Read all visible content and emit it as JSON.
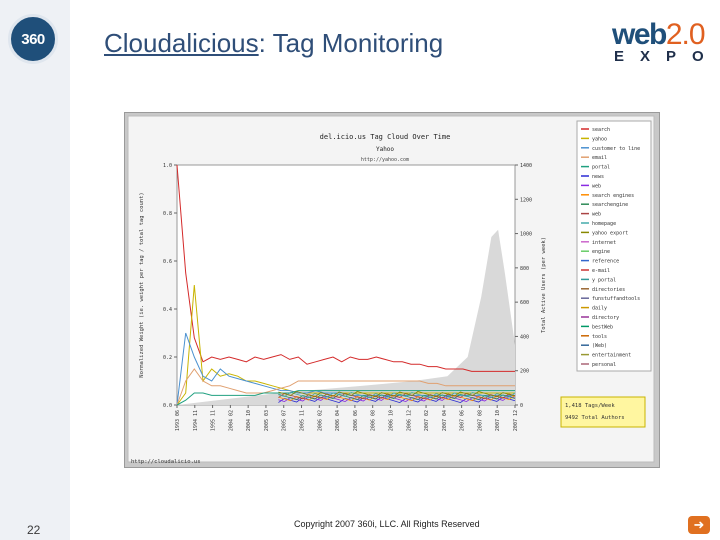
{
  "slide": {
    "title_link": "Cloudalicious",
    "title_rest": ": Tag Monitoring",
    "page_number": "22",
    "copyright": "Copyright 2007 360i, LLC. All Rights Reserved",
    "logo_360": "360",
    "event_logo": {
      "word": "web",
      "version": "2.0",
      "sub": "EXPO"
    },
    "next_icon": "arrow-right-icon"
  },
  "chart_data": {
    "type": "line",
    "title": "del.icio.us Tag Cloud Over Time",
    "subtitle": "Yahoo",
    "source_url": "http://yahoo.com",
    "ylabel": "Normalized Weight (ie. weight per tag / total tag count)",
    "y2label": "Total Active Users (per week)",
    "yticks": [
      "0.0",
      "0.2",
      "0.4",
      "0.6",
      "0.8",
      "1.0"
    ],
    "y2ticks": [
      "0",
      "200",
      "400",
      "600",
      "800",
      "1000",
      "1200",
      "1400"
    ],
    "xticks": [
      "1993 06",
      "1994 11",
      "1995 11",
      "2004 02",
      "2004 10",
      "2005 03",
      "2005 07",
      "2005 11",
      "2006 02",
      "2006 04",
      "2006 06",
      "2006 08",
      "2006 10",
      "2006 12",
      "2007 02",
      "2007 04",
      "2007 06",
      "2007 08",
      "2007 10",
      "2007 12"
    ],
    "watermark": "http://cloudalicio.us",
    "legend": [
      "search",
      "yahoo",
      "customer to line",
      "email",
      "portal",
      "news",
      "web",
      "search engines",
      "searchengine",
      "web",
      "homepage",
      "yahoo export",
      "internet",
      "engine",
      "reference",
      "e-mail",
      "y portal",
      "directories",
      "funstuffandtools",
      "daily",
      "directory",
      "bestWeb",
      "tools",
      "(Web)",
      "entertainment",
      "personal"
    ],
    "stats": [
      "1,418 Tags/Week",
      "9492 Total Authors"
    ],
    "series": [
      {
        "name": "search",
        "color": "#d42a2a",
        "values": [
          1.0,
          0.55,
          0.28,
          0.18,
          0.2,
          0.19,
          0.2,
          0.19,
          0.18,
          0.2,
          0.19,
          0.2,
          0.21,
          0.19,
          0.2,
          0.17,
          0.18,
          0.19,
          0.2,
          0.18,
          0.2,
          0.19,
          0.19,
          0.2,
          0.19,
          0.18,
          0.18,
          0.17,
          0.17,
          0.16,
          0.16,
          0.15,
          0.15,
          0.15,
          0.14,
          0.14,
          0.14,
          0.14,
          0.14,
          0.14
        ]
      },
      {
        "name": "yahoo",
        "color": "#c8b400",
        "values": [
          0.0,
          0.05,
          0.5,
          0.1,
          0.15,
          0.12,
          0.13,
          0.12,
          0.1,
          0.1,
          0.09,
          0.08,
          0.07,
          0.06,
          0.05,
          0.05,
          0.05,
          0.05,
          0.05,
          0.05,
          0.05,
          0.05,
          0.05,
          0.05,
          0.05,
          0.05,
          0.05,
          0.05,
          0.05,
          0.05,
          0.05,
          0.05,
          0.05,
          0.05,
          0.05,
          0.05,
          0.05,
          0.05,
          0.05,
          0.05
        ]
      },
      {
        "name": "customer to line",
        "color": "#4a90d0",
        "values": [
          0.0,
          0.3,
          0.2,
          0.12,
          0.1,
          0.15,
          0.12,
          0.11,
          0.1,
          0.09,
          0.08,
          0.07,
          0.06,
          0.06,
          0.05,
          0.05,
          0.06,
          0.05,
          0.05,
          0.05,
          0.04,
          0.04,
          0.04,
          0.04,
          0.04,
          0.04,
          0.04,
          0.04,
          0.04,
          0.04,
          0.04,
          0.04,
          0.04,
          0.04,
          0.04,
          0.04,
          0.04,
          0.04,
          0.04,
          0.04
        ]
      },
      {
        "name": "portal",
        "color": "#e0a070",
        "values": [
          0.0,
          0.1,
          0.15,
          0.1,
          0.08,
          0.08,
          0.07,
          0.06,
          0.05,
          0.05,
          0.05,
          0.06,
          0.07,
          0.08,
          0.1,
          0.1,
          0.1,
          0.1,
          0.1,
          0.1,
          0.1,
          0.1,
          0.1,
          0.1,
          0.1,
          0.1,
          0.1,
          0.1,
          0.1,
          0.09,
          0.09,
          0.08,
          0.08,
          0.08,
          0.08,
          0.08,
          0.08,
          0.08,
          0.08,
          0.08
        ]
      },
      {
        "name": "news",
        "color": "#20a080",
        "values": [
          0.0,
          0.02,
          0.05,
          0.05,
          0.04,
          0.04,
          0.04,
          0.04,
          0.04,
          0.04,
          0.05,
          0.05,
          0.05,
          0.05,
          0.06,
          0.06,
          0.06,
          0.06,
          0.06,
          0.06,
          0.06,
          0.06,
          0.06,
          0.06,
          0.06,
          0.06,
          0.06,
          0.06,
          0.06,
          0.06,
          0.06,
          0.06,
          0.06,
          0.06,
          0.06,
          0.06,
          0.06,
          0.06,
          0.06,
          0.06
        ]
      }
    ]
  }
}
